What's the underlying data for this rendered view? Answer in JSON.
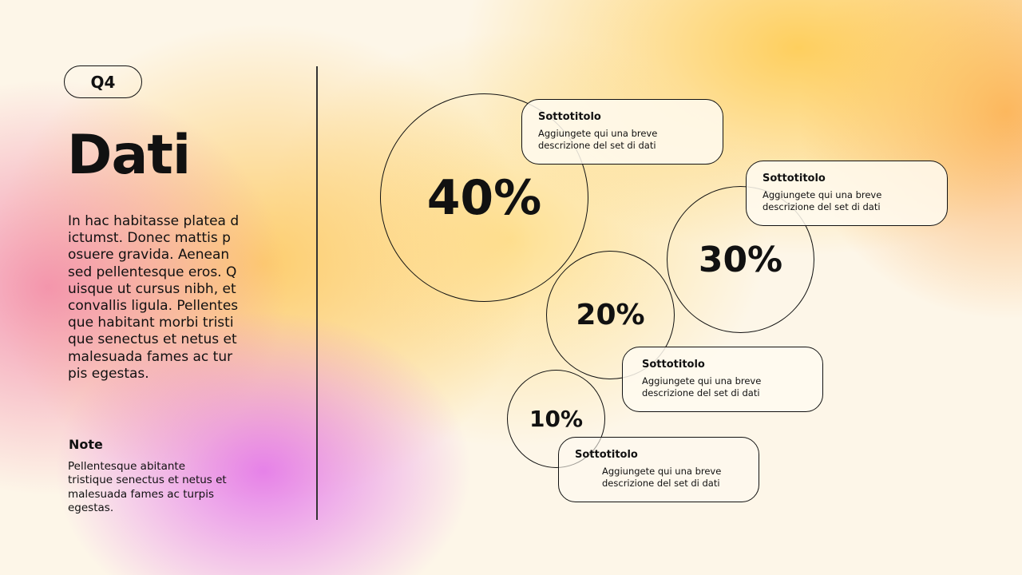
{
  "badge": "Q4",
  "title": "Dati",
  "paragraph_lines": [
    "In hac habitasse platea d",
    "ictumst. Donec mattis p",
    "osuere gravida. Aenean",
    "sed pellentesque eros. Q",
    "uisque ut cursus nibh, et",
    "convallis ligula. Pellentes",
    "que habitant morbi tristi",
    "que senectus et netus et",
    "malesuada fames ac tur",
    "pis egestas."
  ],
  "note": {
    "heading": "Note",
    "lines": [
      "Pellentesque abitante",
      "tristique senectus et netus et",
      "malesuada fames ac turpis",
      "egestas."
    ]
  },
  "bubbles": [
    {
      "value": "40%",
      "subtitle": "Sottotitolo",
      "description": "Aggiungete qui una breve descrizione del set di dati"
    },
    {
      "value": "30%",
      "subtitle": "Sottotitolo",
      "description": "Aggiungete qui una breve descrizione del set di dati"
    },
    {
      "value": "20%",
      "subtitle": "Sottotitolo",
      "description": "Aggiungete qui una breve descrizione del set di dati"
    },
    {
      "value": "10%",
      "subtitle": "Sottotitolo",
      "description": "Aggiungete qui una breve descrizione del set di dati"
    }
  ]
}
